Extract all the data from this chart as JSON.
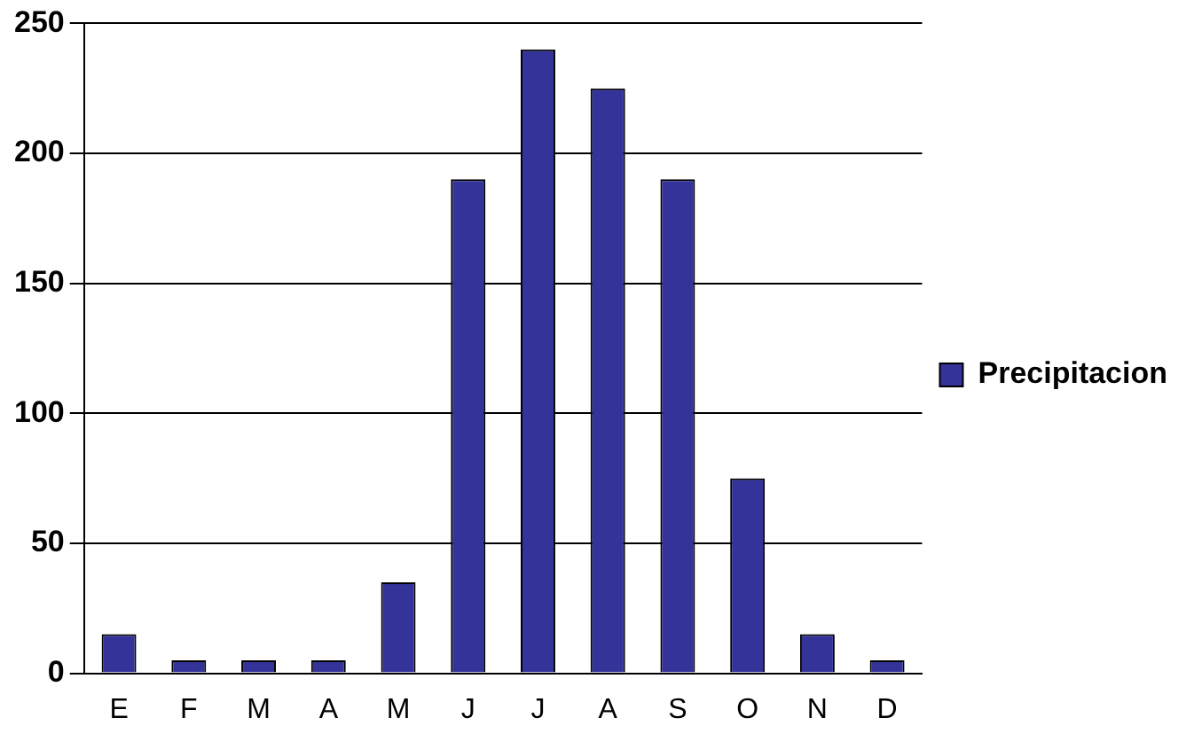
{
  "chart_data": {
    "type": "bar",
    "categories": [
      "E",
      "F",
      "M",
      "A",
      "M",
      "J",
      "J",
      "A",
      "S",
      "O",
      "N",
      "D"
    ],
    "series": [
      {
        "name": "Precipitacion",
        "color": "#333399",
        "values": [
          15,
          5,
          5,
          5,
          35,
          190,
          240,
          225,
          190,
          75,
          15,
          5
        ]
      }
    ],
    "ylim": [
      0,
      250
    ],
    "yticks": [
      0,
      50,
      100,
      150,
      200,
      250
    ],
    "grid": "y",
    "legend": "right"
  }
}
